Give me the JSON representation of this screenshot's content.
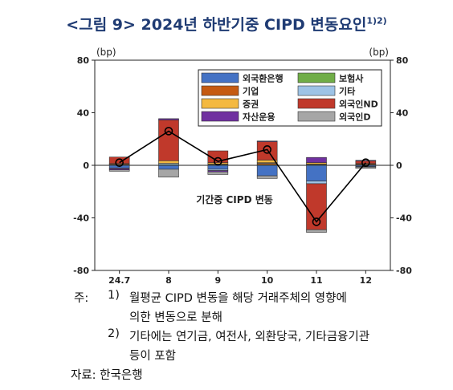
{
  "page": {
    "title": "<그림 9> 2024년 하반기중 CIPD 변동요인",
    "title_sup": "1)2)",
    "notes": {
      "prefix": "주:",
      "note1_num": "1)",
      "note1_line1": "월평균 CIPD 변동을 해당 거래주체의 영향에",
      "note1_line2": "의한 변동으로 분해",
      "note2_num": "2)",
      "note2_line1": "기타에는 연기금, 여전사, 외환당국, 기타금융기관",
      "note2_line2": "등이 포함"
    },
    "source": "자료: 한국은행"
  },
  "chart_data": {
    "type": "bar",
    "stacked": true,
    "title": "",
    "ylabel_left": "(bp)",
    "ylabel_right": "(bp)",
    "ylim": [
      -80,
      80
    ],
    "yticks": [
      -80,
      -40,
      0,
      40,
      80
    ],
    "categories": [
      "24.7",
      "8",
      "9",
      "10",
      "11",
      "12"
    ],
    "grid": false,
    "legend_position": "top-right",
    "series": [
      {
        "name": "외국환은행",
        "color": "#4472c4",
        "values": [
          -2,
          -3,
          -3,
          -8,
          -12,
          -1
        ]
      },
      {
        "name": "보험사",
        "color": "#70ad47",
        "values": [
          0.3,
          0.5,
          0.5,
          0.5,
          0.5,
          0.3
        ]
      },
      {
        "name": "기업",
        "color": "#c55a11",
        "values": [
          0.5,
          0,
          0.5,
          1,
          0.5,
          0.5
        ]
      },
      {
        "name": "기타",
        "color": "#9dc3e6",
        "values": [
          -0.5,
          1,
          -1,
          0.5,
          -2,
          -0.3
        ]
      },
      {
        "name": "증권",
        "color": "#f4b940",
        "values": [
          0.5,
          2,
          1,
          2,
          1,
          0.5
        ]
      },
      {
        "name": "외국인ND",
        "color": "#c0392b",
        "values": [
          5,
          31,
          9,
          14,
          -35,
          2
        ]
      },
      {
        "name": "자산운용",
        "color": "#7030a0",
        "values": [
          -1,
          1,
          -1,
          0.5,
          4,
          0.5
        ]
      },
      {
        "name": "외국인D",
        "color": "#a6a6a6",
        "values": [
          -1,
          -6,
          -2,
          -2,
          -2,
          -1
        ]
      }
    ],
    "line": {
      "name": "기간중 CIPD 변동",
      "values": [
        2,
        26,
        3,
        12,
        -43,
        2
      ]
    }
  }
}
